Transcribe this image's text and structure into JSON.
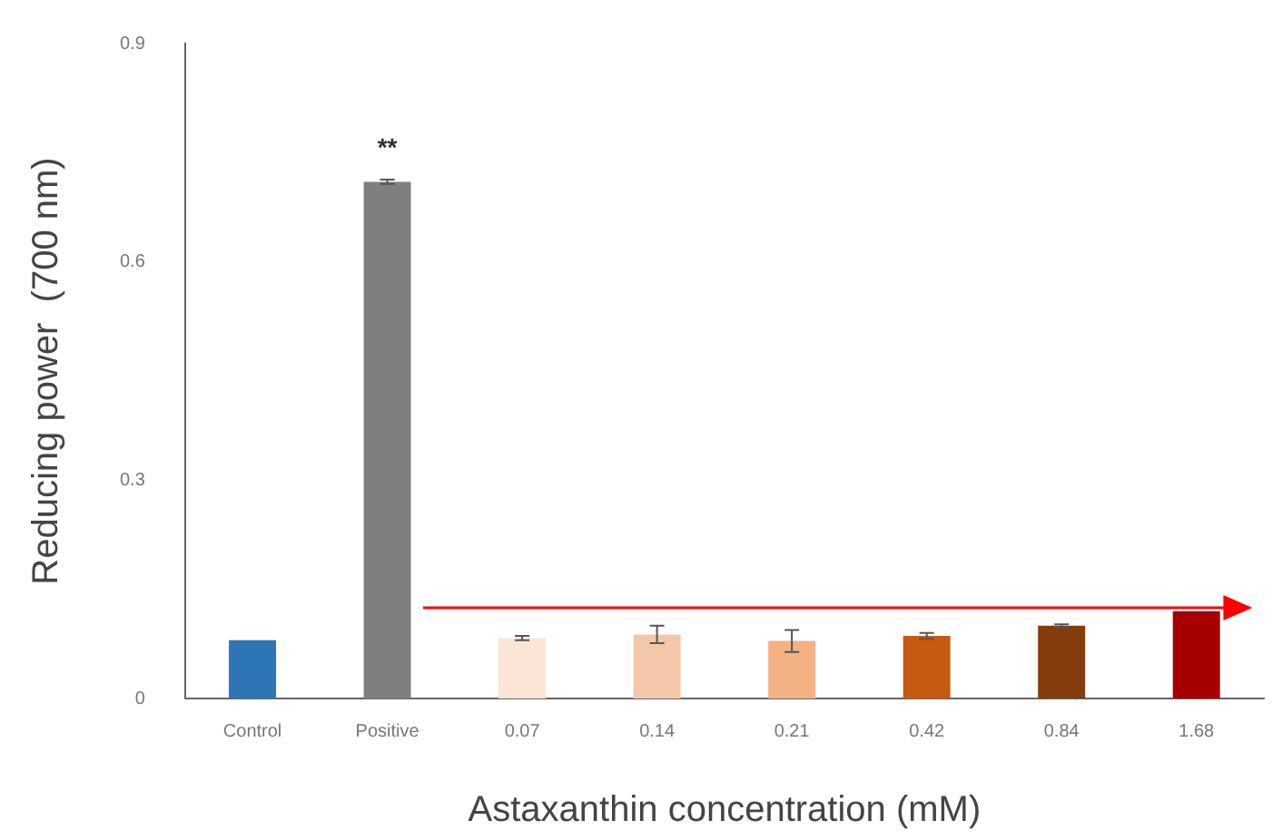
{
  "chart_data": {
    "type": "bar",
    "xlabel": "Astaxanthin concentration (mM)",
    "ylabel": "Reducing power  (700 nm)",
    "categories": [
      "Control",
      "Positive",
      "0.07",
      "0.14",
      "0.21",
      "0.42",
      "0.84",
      "1.68"
    ],
    "values": [
      0.08,
      0.71,
      0.083,
      0.088,
      0.079,
      0.086,
      0.1,
      0.12
    ],
    "errors": [
      null,
      0.003,
      0.003,
      0.012,
      0.015,
      0.004,
      0.002,
      null
    ],
    "colors": [
      "#2e75b6",
      "#7f7f7f",
      "#fbe5d6",
      "#f4c7a8",
      "#f4b183",
      "#c55a11",
      "#843c0c",
      "#a50000"
    ],
    "ylim": [
      0,
      0.9
    ],
    "yticks": [
      0,
      0.3,
      0.6,
      0.9
    ],
    "grid": false,
    "legend": false,
    "annotations": [
      "**"
    ]
  }
}
